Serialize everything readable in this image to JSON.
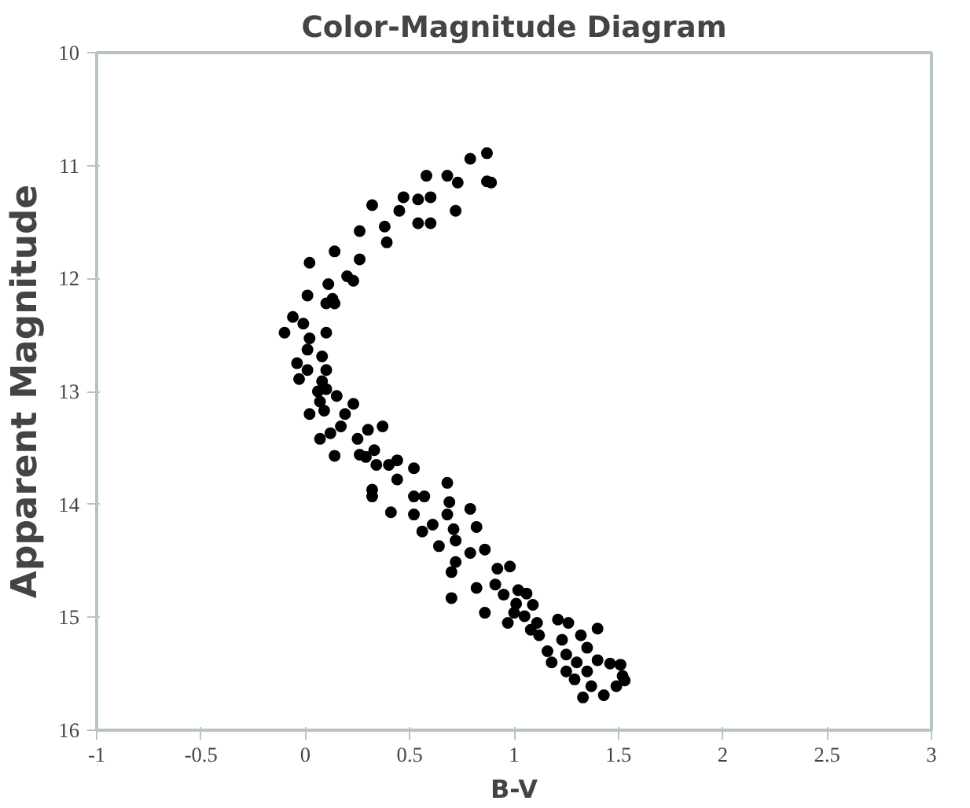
{
  "chart_data": {
    "type": "scatter",
    "title": "Color-Magnitude Diagram",
    "xlabel": "B-V",
    "ylabel": "Apparent Magnitude",
    "xlim": [
      -1,
      3
    ],
    "xticks": [
      -1,
      -0.5,
      0,
      0.5,
      1,
      1.5,
      2,
      2.5,
      3
    ],
    "ylim": [
      16,
      10
    ],
    "yticks": [
      10,
      11,
      12,
      13,
      14,
      15,
      16
    ],
    "grid": false,
    "marker": "circle",
    "series": [
      {
        "color": "#000000",
        "x": [
          0.87,
          0.79,
          0.87,
          0.89,
          0.58,
          0.68,
          0.73,
          0.47,
          0.54,
          0.6,
          0.45,
          0.72,
          0.54,
          0.6,
          0.32,
          0.38,
          0.39,
          0.26,
          0.26,
          0.14,
          0.02,
          0.2,
          0.23,
          0.11,
          0.01,
          0.13,
          0.1,
          0.14,
          -0.06,
          -0.01,
          -0.1,
          0.1,
          0.02,
          0.01,
          0.08,
          -0.04,
          0.01,
          0.1,
          -0.03,
          0.08,
          0.06,
          0.1,
          0.07,
          0.15,
          0.23,
          0.02,
          0.09,
          0.19,
          0.17,
          0.3,
          0.37,
          0.12,
          0.07,
          0.25,
          0.33,
          0.26,
          0.14,
          0.29,
          0.4,
          0.44,
          0.52,
          0.34,
          0.44,
          0.68,
          0.32,
          0.32,
          0.52,
          0.57,
          0.69,
          0.41,
          0.52,
          0.68,
          0.79,
          0.61,
          0.56,
          0.71,
          0.82,
          0.64,
          0.72,
          0.79,
          0.86,
          0.72,
          0.7,
          0.92,
          0.98,
          0.91,
          0.82,
          0.95,
          1.02,
          1.06,
          0.7,
          1.01,
          1.09,
          1.0,
          0.86,
          1.05,
          0.97,
          1.11,
          1.21,
          1.26,
          1.08,
          1.12,
          1.23,
          1.32,
          1.4,
          1.16,
          1.25,
          1.35,
          1.18,
          1.3,
          1.4,
          1.46,
          1.25,
          1.35,
          1.51,
          1.29,
          1.52,
          1.53,
          1.37,
          1.49,
          1.33,
          1.43
        ],
        "values": [
          10.89,
          10.94,
          11.14,
          11.15,
          11.09,
          11.09,
          11.15,
          11.28,
          11.3,
          11.28,
          11.4,
          11.4,
          11.51,
          11.51,
          11.35,
          11.54,
          11.68,
          11.58,
          11.83,
          11.76,
          11.86,
          11.98,
          12.02,
          12.05,
          12.15,
          12.18,
          12.22,
          12.22,
          12.34,
          12.4,
          12.48,
          12.48,
          12.53,
          12.63,
          12.69,
          12.75,
          12.81,
          12.81,
          12.89,
          12.91,
          13.0,
          12.98,
          13.09,
          13.04,
          13.11,
          13.2,
          13.17,
          13.2,
          13.31,
          13.34,
          13.31,
          13.37,
          13.42,
          13.42,
          13.52,
          13.56,
          13.57,
          13.58,
          13.65,
          13.61,
          13.68,
          13.65,
          13.78,
          13.81,
          13.87,
          13.93,
          13.93,
          13.93,
          13.98,
          14.07,
          14.09,
          14.09,
          14.04,
          14.18,
          14.24,
          14.22,
          14.2,
          14.37,
          14.32,
          14.43,
          14.4,
          14.51,
          14.6,
          14.57,
          14.55,
          14.71,
          14.74,
          14.8,
          14.76,
          14.79,
          14.83,
          14.88,
          14.89,
          14.96,
          14.96,
          14.99,
          15.05,
          15.05,
          15.02,
          15.05,
          15.11,
          15.16,
          15.2,
          15.16,
          15.1,
          15.3,
          15.33,
          15.27,
          15.4,
          15.4,
          15.38,
          15.41,
          15.48,
          15.48,
          15.42,
          15.55,
          15.52,
          15.56,
          15.61,
          15.61,
          15.71,
          15.69
        ]
      }
    ]
  }
}
